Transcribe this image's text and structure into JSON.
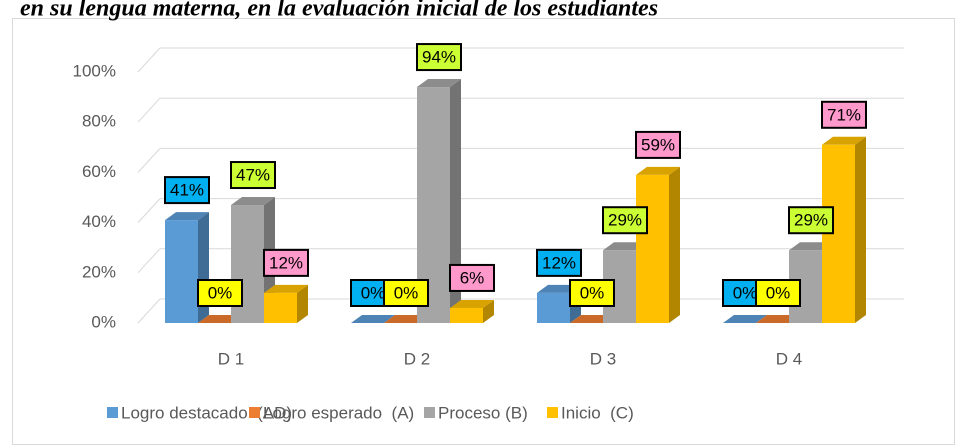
{
  "chart_data": {
    "type": "bar3d",
    "title": "en su lengua materna, en la evaluación inicial de los estudiantes",
    "categories": [
      "D 1",
      "D 2",
      "D 3",
      "D 4"
    ],
    "series": [
      {
        "name": "Logro destacado  (AD)",
        "color": "#5b9bd5",
        "label_color": "#00b0f0",
        "values": [
          41,
          0,
          12,
          0
        ],
        "value_labels": [
          "41%",
          "0%",
          "12%",
          "0%"
        ]
      },
      {
        "name": "Logro esperado  (A)",
        "color": "#ed7d31",
        "label_color": "#ffff00",
        "values": [
          0,
          0,
          0,
          0
        ],
        "value_labels": [
          "0%",
          "0%",
          "0%",
          "0%"
        ]
      },
      {
        "name": "Proceso (B)",
        "color": "#a5a5a5",
        "label_color": "#ccff33",
        "values": [
          47,
          94,
          29,
          29
        ],
        "value_labels": [
          "47%",
          "94%",
          "29%",
          "29%"
        ]
      },
      {
        "name": "Inicio  (C)",
        "color": "#ffc000",
        "label_color": "#ff99cc",
        "values": [
          12,
          6,
          59,
          71
        ],
        "value_labels": [
          "12%",
          "6%",
          "59%",
          "71%"
        ]
      }
    ],
    "ylim": [
      0,
      100
    ],
    "yticks": [
      {
        "value": 0,
        "label": "0%"
      },
      {
        "value": 20,
        "label": "20%"
      },
      {
        "value": 40,
        "label": "40%"
      },
      {
        "value": 60,
        "label": "60%"
      },
      {
        "value": 80,
        "label": "80%"
      },
      {
        "value": 100,
        "label": "100%"
      }
    ],
    "grid": true,
    "legend": "bottom"
  }
}
